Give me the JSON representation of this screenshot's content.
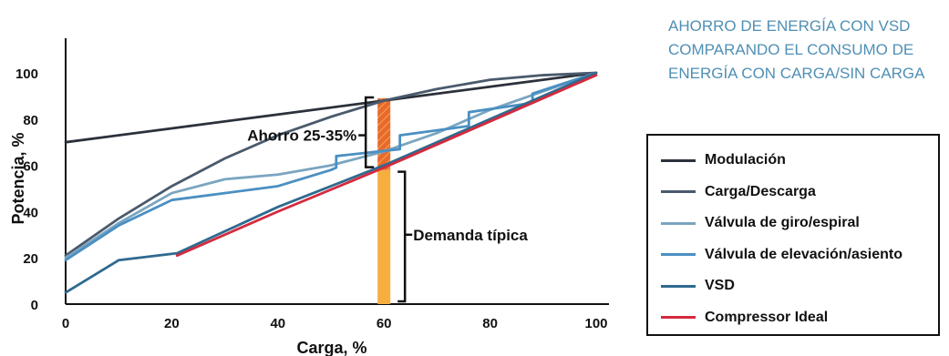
{
  "title": "AHORRO DE ENERGÍA CON VSD COMPARANDO EL CONSUMO DE ENERGÍA CON CARGA/SIN CARGA",
  "chart_data": {
    "type": "line",
    "xlabel": "Carga, %",
    "ylabel": "Potencia, %",
    "xlim": [
      0,
      100
    ],
    "ylim": [
      0,
      100
    ],
    "xticks": [
      "0",
      "20",
      "40",
      "60",
      "80",
      "100"
    ],
    "yticks": [
      "0",
      "20",
      "40",
      "60",
      "80",
      "100"
    ],
    "grid": false,
    "legend_position": "right",
    "series": [
      {
        "name": "Modulación",
        "color": "#2b313b",
        "x": [
          0,
          20,
          40,
          60,
          80,
          100
        ],
        "y": [
          70,
          76,
          82,
          88,
          94,
          100
        ]
      },
      {
        "name": "Carga/Descarga",
        "color": "#4a5a6c",
        "x": [
          0,
          10,
          20,
          30,
          40,
          50,
          60,
          70,
          80,
          90,
          100
        ],
        "y": [
          21,
          37,
          51,
          63,
          73,
          81,
          88,
          93,
          97,
          99,
          100
        ]
      },
      {
        "name": "Válvula de giro/espiral",
        "color": "#7aa5c0",
        "x": [
          0,
          10,
          20,
          30,
          40,
          50,
          60,
          70,
          80,
          90,
          100
        ],
        "y": [
          20,
          35,
          48,
          54,
          56,
          60,
          66,
          74,
          84,
          92,
          100
        ]
      },
      {
        "name": "Válvula de elevación/asiento",
        "color": "#4a8fc2",
        "x": [
          0,
          10,
          20,
          30,
          40,
          50,
          51,
          51,
          63,
          63,
          76,
          76,
          88,
          88,
          100
        ],
        "y": [
          19,
          34,
          45,
          48,
          51,
          58,
          59,
          64,
          67,
          73,
          77,
          83,
          87,
          91,
          100
        ]
      },
      {
        "name": "VSD",
        "color": "#2f6a8f",
        "x": [
          0,
          10,
          21,
          40,
          60,
          80,
          100
        ],
        "y": [
          5,
          19,
          22,
          42,
          60,
          80,
          100
        ]
      },
      {
        "name": "Compressor Ideal",
        "color": "#d42a3e",
        "x": [
          21,
          40,
          60,
          80,
          100
        ],
        "y": [
          21,
          40,
          59,
          79,
          99
        ]
      }
    ],
    "bars": [
      {
        "label": "Demanda típica",
        "x": 60,
        "from": 0,
        "to": 58,
        "color": "#f6ae3f"
      },
      {
        "label": "Ahorro 25-35%",
        "x": 60,
        "from": 58,
        "to": 89,
        "color": "#e8692e",
        "hatched": true
      }
    ],
    "annotations": [
      "Ahorro 25-35%",
      "Demanda típica"
    ]
  }
}
